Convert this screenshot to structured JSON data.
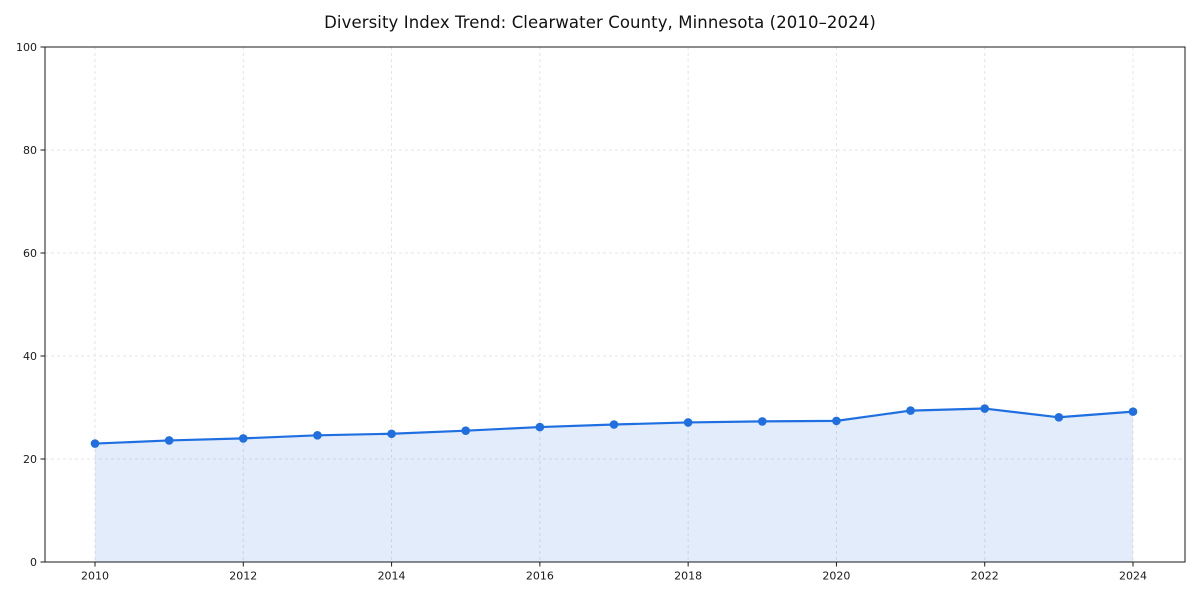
{
  "chart_data": {
    "type": "area",
    "title": "Diversity Index Trend: Clearwater County, Minnesota (2010–2024)",
    "x": [
      2010,
      2011,
      2012,
      2013,
      2014,
      2015,
      2016,
      2017,
      2018,
      2019,
      2020,
      2021,
      2022,
      2023,
      2024
    ],
    "series": [
      {
        "name": "Diversity Index",
        "values": [
          23.0,
          23.6,
          24.0,
          24.6,
          24.9,
          25.5,
          26.2,
          26.7,
          27.1,
          27.3,
          27.4,
          29.4,
          29.8,
          28.1,
          29.2
        ]
      }
    ],
    "xlabel": "",
    "ylabel": "",
    "xlim": [
      2009.3,
      2024.7
    ],
    "ylim": [
      0,
      100
    ],
    "xticks": [
      2010,
      2012,
      2014,
      2016,
      2018,
      2020,
      2022,
      2024
    ],
    "yticks": [
      0,
      20,
      40,
      60,
      80,
      100
    ],
    "grid": true,
    "grid_style": "dashed",
    "legend_position": "none",
    "colors": {
      "line": "#1f6fe0",
      "marker": "#1f6fe0",
      "fill": "#1f6fe0",
      "fill_opacity": 0.13,
      "grid": "#e4e4e4",
      "axis": "#1a1a1a",
      "tick_label": "#1a1a1a",
      "title": "#111111",
      "background": "#ffffff"
    }
  }
}
